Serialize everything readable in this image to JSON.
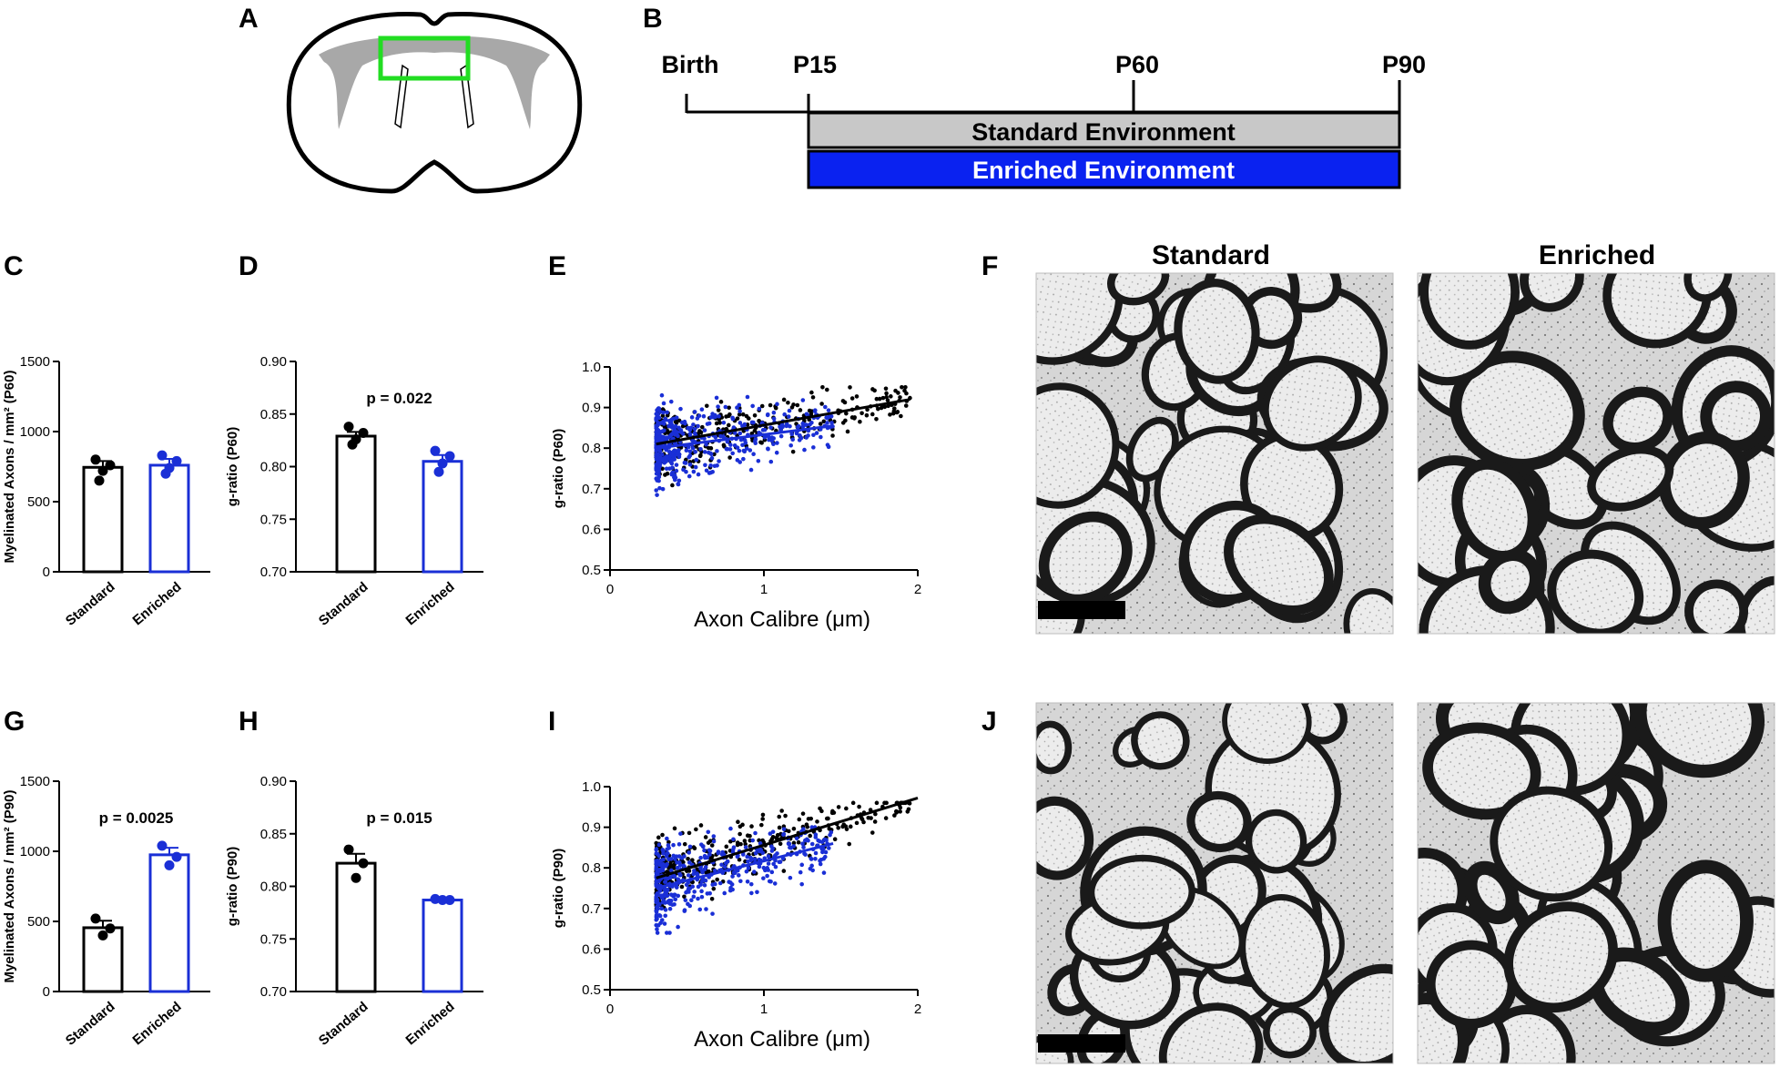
{
  "panels": {
    "A": "A",
    "B": "B",
    "C": "C",
    "D": "D",
    "E": "E",
    "F": "F",
    "G": "G",
    "H": "H",
    "I": "I",
    "J": "J"
  },
  "colors": {
    "standard": "#000000",
    "enriched": "#1a2fd6",
    "standard_bar_fill": "#c8c8c8",
    "enriched_bar_fill": "#0a22f0",
    "roi_box": "#22dd22",
    "white_matter": "#a8a8a8"
  },
  "timeline": {
    "labels": [
      "Birth",
      "P15",
      "P60",
      "P90"
    ],
    "standard_env": "Standard Environment",
    "enriched_env": "Enriched Environment"
  },
  "micrographs": {
    "col_standard": "Standard",
    "col_enriched": "Enriched"
  },
  "chart_data": [
    {
      "id": "C",
      "type": "bar",
      "categories": [
        "Standard",
        "Enriched"
      ],
      "ylabel": "Myelinated Axons / mm² (P60)",
      "ylim": [
        0,
        1500
      ],
      "yticks": [
        "0",
        "500",
        "1000",
        "1500"
      ],
      "values": [
        745,
        760
      ],
      "sem": [
        45,
        45
      ],
      "points": [
        [
          800,
          760,
          720,
          650
        ],
        [
          830,
          790,
          740,
          700
        ]
      ],
      "pvalue": ""
    },
    {
      "id": "D",
      "type": "bar",
      "categories": [
        "Standard",
        "Enriched"
      ],
      "ylabel": "g-ratio (P60)",
      "ylim": [
        0.7,
        0.9
      ],
      "yticks": [
        "0.70",
        "0.75",
        "0.80",
        "0.85",
        "0.90"
      ],
      "values": [
        0.829,
        0.805
      ],
      "sem": [
        0.004,
        0.006
      ],
      "points": [
        [
          0.838,
          0.832,
          0.826,
          0.821
        ],
        [
          0.815,
          0.81,
          0.803,
          0.795
        ]
      ],
      "pvalue": "p = 0.022"
    },
    {
      "id": "E",
      "type": "scatter",
      "xlabel": "Axon Calibre (μm)",
      "ylabel": "g-ratio (P60)",
      "xlim": [
        0,
        2
      ],
      "ylim": [
        0.5,
        1.0
      ],
      "xticks": [
        "0",
        "1",
        "2"
      ],
      "yticks": [
        "0.5",
        "0.6",
        "0.7",
        "0.8",
        "0.9",
        "1.0"
      ],
      "standard_fit": [
        [
          0.3,
          0.81
        ],
        [
          1.95,
          0.92
        ]
      ],
      "enriched_fit": [
        [
          0.3,
          0.8
        ],
        [
          1.45,
          0.855
        ]
      ],
      "standard_cloud": {
        "x_min": 0.3,
        "x_max": 1.95,
        "y_min": 0.7,
        "y_max": 0.95
      },
      "enriched_cloud": {
        "x_min": 0.3,
        "x_max": 1.45,
        "y_min": 0.64,
        "y_max": 0.93
      }
    },
    {
      "id": "G",
      "type": "bar",
      "categories": [
        "Standard",
        "Enriched"
      ],
      "ylabel": "Myelinated Axons / mm² (P90)",
      "ylim": [
        0,
        1500
      ],
      "yticks": [
        "0",
        "500",
        "1000",
        "1500"
      ],
      "values": [
        455,
        975
      ],
      "sem": [
        50,
        50
      ],
      "points": [
        [
          520,
          450,
          400
        ],
        [
          1040,
          960,
          900
        ]
      ],
      "pvalue": "p = 0.0025"
    },
    {
      "id": "H",
      "type": "bar",
      "categories": [
        "Standard",
        "Enriched"
      ],
      "ylabel": "g-ratio (P90)",
      "ylim": [
        0.7,
        0.9
      ],
      "yticks": [
        "0.70",
        "0.75",
        "0.80",
        "0.85",
        "0.90"
      ],
      "values": [
        0.822,
        0.787
      ],
      "sem": [
        0.009,
        0.001
      ],
      "points": [
        [
          0.835,
          0.822,
          0.808
        ],
        [
          0.788,
          0.787,
          0.787
        ]
      ],
      "pvalue": "p = 0.015"
    },
    {
      "id": "I",
      "type": "scatter",
      "xlabel": "Axon Calibre (μm)",
      "ylabel": "g-ratio (P90)",
      "xlim": [
        0,
        2
      ],
      "ylim": [
        0.5,
        1.0
      ],
      "xticks": [
        "0",
        "1",
        "2"
      ],
      "yticks": [
        "0.5",
        "0.6",
        "0.7",
        "0.8",
        "0.9",
        "1.0"
      ],
      "standard_fit": [
        [
          0.3,
          0.775
        ],
        [
          2.0,
          0.972
        ]
      ],
      "enriched_fit": [
        [
          0.3,
          0.75
        ],
        [
          1.45,
          0.86
        ]
      ],
      "standard_cloud": {
        "x_min": 0.3,
        "x_max": 1.95,
        "y_min": 0.7,
        "y_max": 0.96
      },
      "enriched_cloud": {
        "x_min": 0.3,
        "x_max": 1.45,
        "y_min": 0.64,
        "y_max": 0.9
      }
    }
  ]
}
